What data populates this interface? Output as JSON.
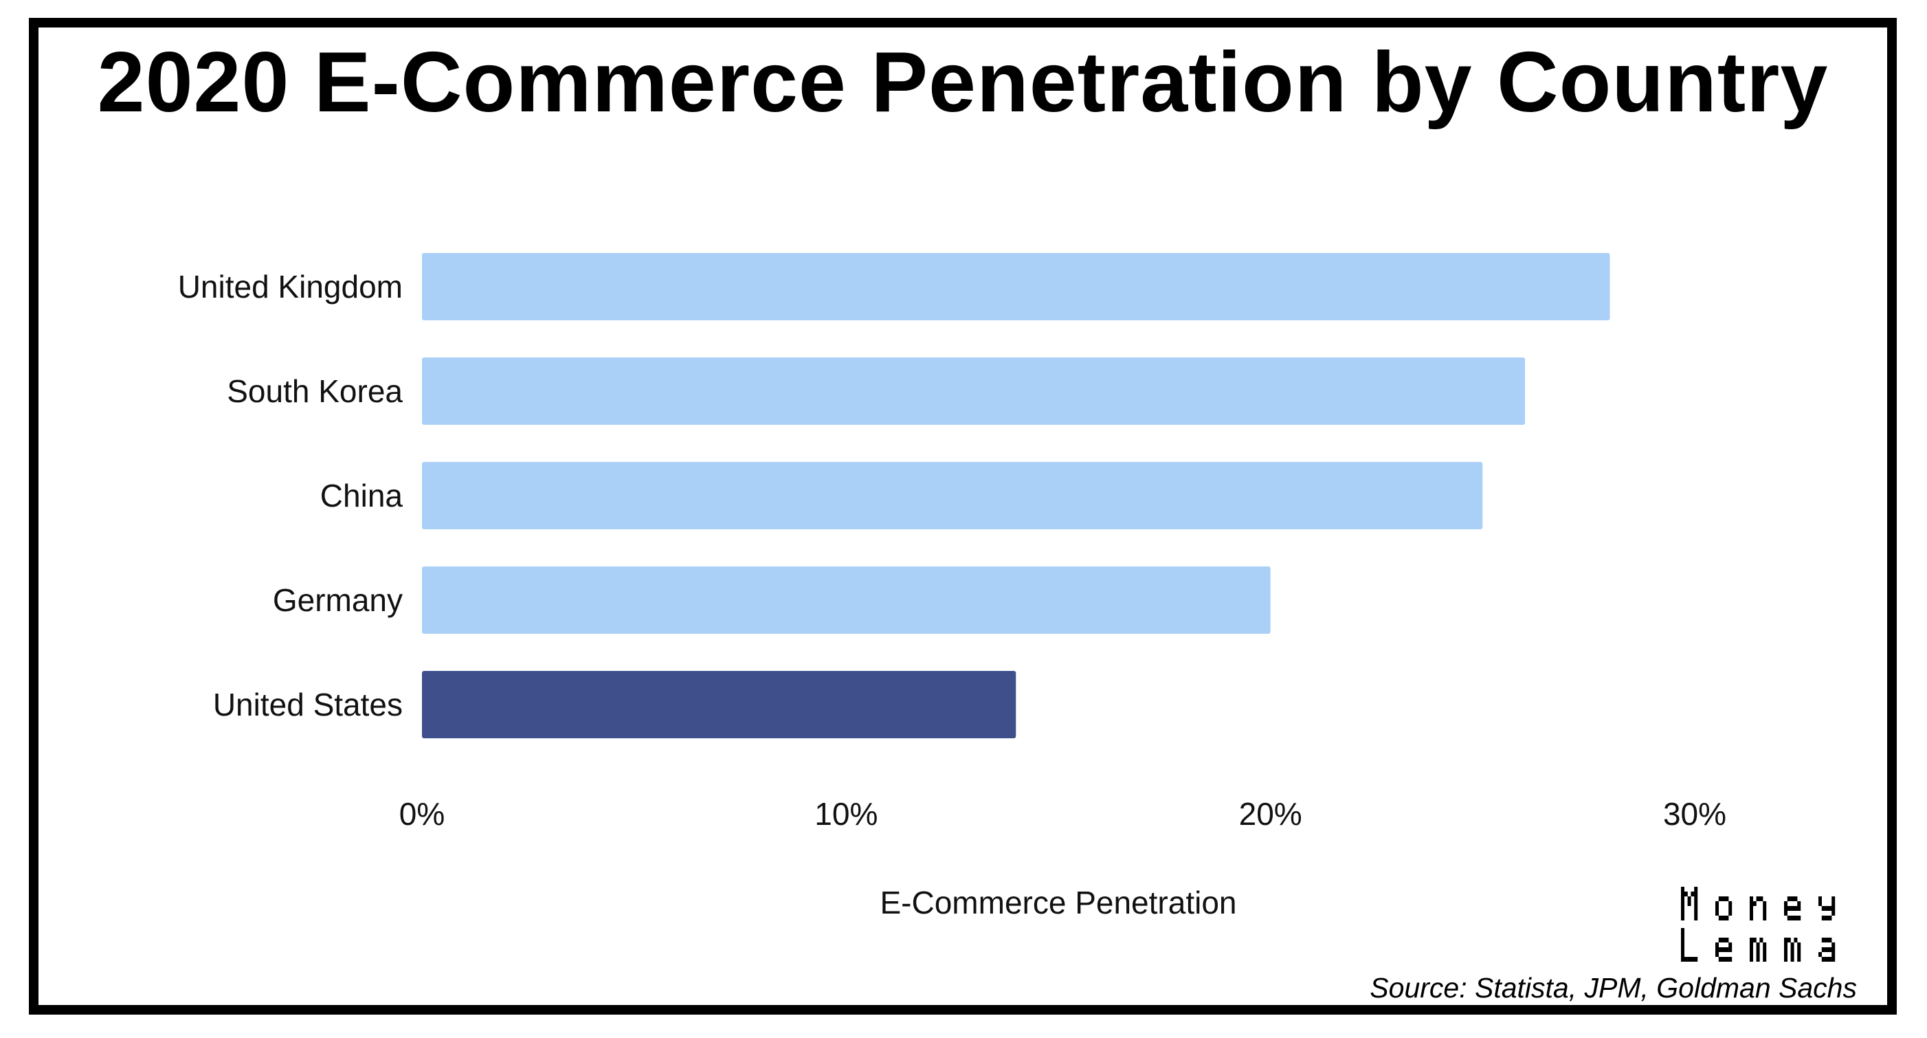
{
  "chart_data": {
    "type": "bar",
    "orientation": "horizontal",
    "title": "2020 E-Commerce Penetration by Country",
    "xlabel": "E-Commerce Penetration",
    "ylabel": "",
    "categories": [
      "United Kingdom",
      "South Korea",
      "China",
      "Germany",
      "United States"
    ],
    "values": [
      0.28,
      0.26,
      0.25,
      0.2,
      0.14
    ],
    "xlim": [
      0,
      0.3
    ],
    "xticks": [
      0,
      0.1,
      0.2,
      0.3
    ],
    "xtick_labels": [
      "0%",
      "10%",
      "20%",
      "30%"
    ],
    "grid": false,
    "colors": {
      "default_bar": "#abd0f7",
      "highlight_bar": "#3f4f8b",
      "highlight_category": "United States"
    }
  },
  "source": "Source: Statista, JPM, Goldman Sachs",
  "logo": {
    "text_line1": "Money",
    "text_line2": "Lemma",
    "color": "#000000"
  }
}
